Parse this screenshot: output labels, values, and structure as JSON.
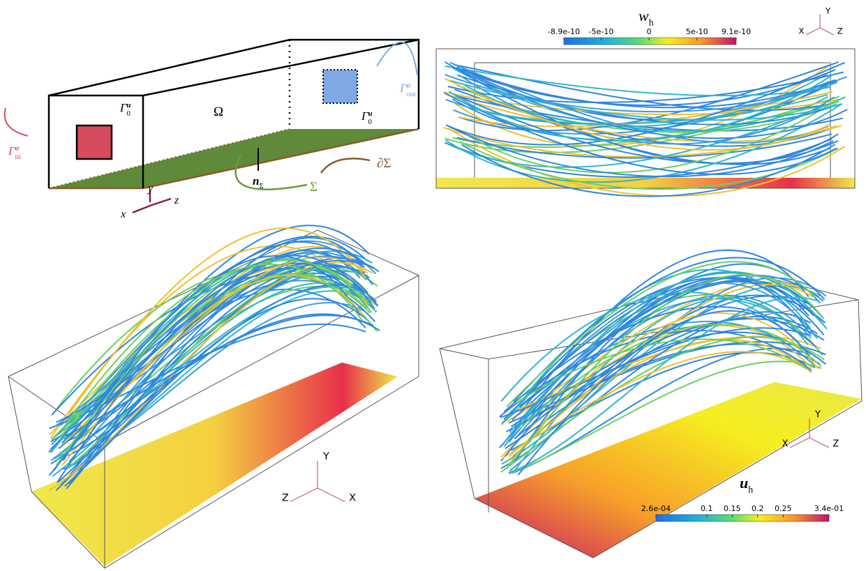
{
  "diagram": {
    "omega": "Ω",
    "gamma0_front": {
      "base": "Γ",
      "sub": "0",
      "sup": "u"
    },
    "gamma0_back": {
      "base": "Γ",
      "sub": "0",
      "sup": "u"
    },
    "gamma_in": {
      "base": "Γ",
      "sub": "in",
      "sup": "σ"
    },
    "gamma_out": {
      "base": "Γ",
      "sub": "out",
      "sup": "σ"
    },
    "normal": {
      "base": "n",
      "sub": "Σ"
    },
    "sigma": "Σ",
    "boundary": "∂Σ",
    "axes": [
      "x",
      "y",
      "z"
    ]
  },
  "colorbar_w": {
    "title": {
      "base": "w",
      "sub": "h"
    },
    "lim": [
      -8.9e-10,
      9.1e-10
    ],
    "ticks": [
      -8.9e-10,
      -5e-10,
      0,
      5e-10,
      9.1e-10
    ]
  },
  "colorbar_u": {
    "title": {
      "base": "u",
      "sub": "h"
    },
    "lim": [
      0.00026,
      0.34
    ],
    "ticks": [
      {
        "value": 0.00026,
        "label": "2.6e-04"
      },
      0.1,
      0.15,
      0.2,
      0.25,
      {
        "value": 0.34,
        "label": "3.4e-01"
      }
    ]
  },
  "triads": [
    [
      "Y",
      "X",
      "Z"
    ],
    [
      "Y",
      "Z",
      "X"
    ],
    [
      "Y",
      "X",
      "Z"
    ]
  ]
}
